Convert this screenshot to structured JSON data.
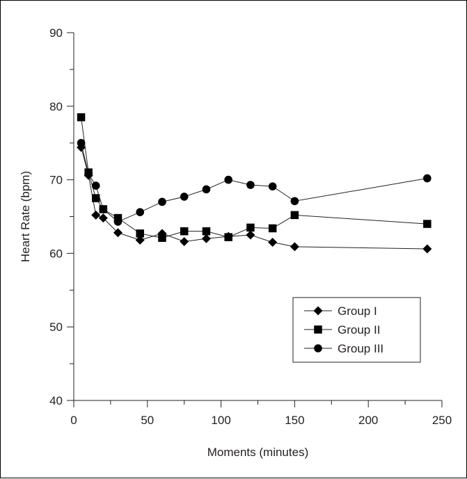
{
  "chart_data": {
    "type": "line",
    "title": "",
    "xlabel": "Moments (minutes)",
    "ylabel": "Heart Rate (bpm)",
    "xlim": [
      0,
      250
    ],
    "ylim": [
      40,
      90
    ],
    "x_ticks": [
      0,
      50,
      100,
      150,
      200,
      250
    ],
    "y_ticks": [
      40,
      50,
      60,
      70,
      80,
      90
    ],
    "grid": false,
    "legend_position": "lower-right",
    "series": [
      {
        "name": "Group I",
        "marker": "diamond",
        "x": [
          5,
          10,
          15,
          20,
          30,
          45,
          60,
          75,
          90,
          105,
          120,
          135,
          150,
          240
        ],
        "values": [
          74.4,
          70.6,
          65.2,
          64.8,
          62.8,
          61.8,
          62.7,
          61.6,
          62.0,
          62.3,
          62.5,
          61.5,
          60.9,
          60.6
        ]
      },
      {
        "name": "Group II",
        "marker": "square",
        "x": [
          5,
          10,
          15,
          20,
          30,
          45,
          60,
          75,
          90,
          105,
          120,
          135,
          150,
          240
        ],
        "values": [
          78.5,
          71.0,
          67.5,
          66.0,
          64.8,
          62.7,
          62.1,
          63.0,
          63.0,
          62.2,
          63.5,
          63.4,
          65.2,
          64.0
        ]
      },
      {
        "name": "Group III",
        "marker": "circle",
        "x": [
          5,
          10,
          15,
          20,
          30,
          45,
          60,
          75,
          90,
          105,
          120,
          135,
          150,
          240
        ],
        "values": [
          75.0,
          70.8,
          69.2,
          66.0,
          64.3,
          65.6,
          67.0,
          67.7,
          68.7,
          70.0,
          69.3,
          69.1,
          67.1,
          70.2
        ]
      }
    ],
    "colors": {
      "line": "#231f20",
      "marker": "#000000",
      "axis": "#231f20"
    }
  }
}
